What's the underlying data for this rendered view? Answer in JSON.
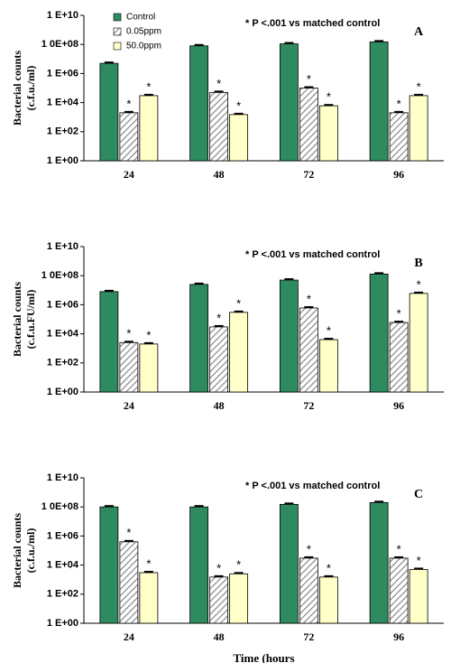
{
  "chart_data": [
    {
      "type": "bar",
      "letter": "A",
      "note": "* P <.001  vs matched control",
      "y_label": [
        "Bacterial counts",
        "(c.f.u./ml)"
      ],
      "log_scale": true,
      "legend": "upper left",
      "categories": [
        "24",
        "48",
        "72",
        "96"
      ],
      "ylim": [
        1,
        10000000000
      ],
      "yticks": [
        {
          "value": 1,
          "label": "1 E+00"
        },
        {
          "value": 100,
          "label": "1 E+02"
        },
        {
          "value": 10000,
          "label": "1 E+04"
        },
        {
          "value": 1000000,
          "label": "1 E+06"
        },
        {
          "value": 100000000,
          "label": "1 0E+08"
        },
        {
          "value": 10000000000,
          "label": "1 E+10"
        }
      ],
      "series": [
        {
          "name": "Control",
          "color": "#2e8b5f",
          "values": [
            5000000,
            80000000,
            110000000,
            150000000
          ]
        },
        {
          "name": "0.05ppm",
          "color": "#8c8c8c",
          "hatch": true,
          "annotation": "*",
          "values": [
            2000,
            50000,
            100000,
            2000
          ]
        },
        {
          "name": "50.0ppm",
          "color": "#ffffc8",
          "annotation": "*",
          "values": [
            30000,
            1500,
            6000,
            30000
          ]
        }
      ]
    },
    {
      "type": "bar",
      "letter": "B",
      "note": "* P <.001  vs matched control",
      "y_label": [
        "Bacterial counts",
        "(c.f.u.FU/ml)"
      ],
      "log_scale": true,
      "categories": [
        "24",
        "48",
        "72",
        "96"
      ],
      "ylim": [
        1,
        10000000000
      ],
      "yticks": [
        {
          "value": 1,
          "label": "1 E+00"
        },
        {
          "value": 100,
          "label": "1 E+02"
        },
        {
          "value": 10000,
          "label": "1 E+04"
        },
        {
          "value": 1000000,
          "label": "1 E+06"
        },
        {
          "value": 100000000,
          "label": "1 0E+08"
        },
        {
          "value": 10000000000,
          "label": "1 E+10"
        }
      ],
      "series": [
        {
          "color": "#2e8b5f",
          "values": [
            8000000,
            25000000,
            50000000,
            130000000
          ]
        },
        {
          "color": "#8c8c8c",
          "hatch": true,
          "annotation": "*",
          "values": [
            2500,
            30000,
            600000,
            60000
          ]
        },
        {
          "color": "#ffffc8",
          "annotation": "*",
          "values": [
            2000,
            300000,
            4000,
            6000000
          ]
        }
      ]
    },
    {
      "type": "bar",
      "letter": "C",
      "note": "* P <.001  vs matched control",
      "y_label": [
        "Bacterial counts",
        "(c.f.u./ml)"
      ],
      "x_label": "Time (hours",
      "log_scale": true,
      "categories": [
        "24",
        "48",
        "72",
        "96"
      ],
      "ylim": [
        1,
        10000000000
      ],
      "yticks": [
        {
          "value": 1,
          "label": "1 E+00"
        },
        {
          "value": 100,
          "label": "1 E+02"
        },
        {
          "value": 10000,
          "label": "1 E+04"
        },
        {
          "value": 1000000,
          "label": "1 E+06"
        },
        {
          "value": 100000000,
          "label": "1 0E+08"
        },
        {
          "value": 10000000000,
          "label": "1 E+10"
        }
      ],
      "series": [
        {
          "color": "#2e8b5f",
          "values": [
            100000000,
            100000000,
            150000000,
            200000000
          ]
        },
        {
          "color": "#8c8c8c",
          "hatch": true,
          "annotation": "*",
          "values": [
            400000,
            1500,
            30000,
            30000
          ]
        },
        {
          "color": "#ffffc8",
          "annotation": "*",
          "values": [
            3000,
            2500,
            1500,
            5000
          ]
        }
      ]
    }
  ]
}
